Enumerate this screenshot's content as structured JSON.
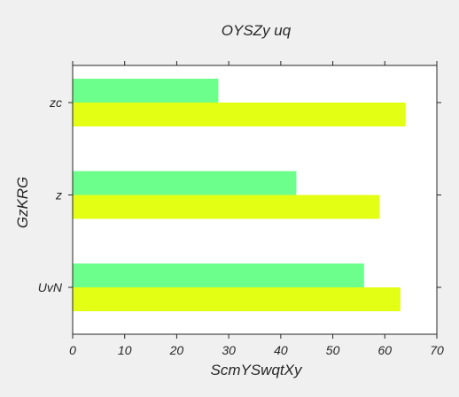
{
  "chart_data": {
    "type": "bar",
    "orientation": "horizontal",
    "title": "OYSZy   uq",
    "xlabel": "ScmYSwqtXy",
    "ylabel": "GzKRG",
    "categories": [
      "UvN",
      "z",
      "zc"
    ],
    "series": [
      {
        "color": "#6dff8b",
        "values": [
          56,
          43,
          28
        ]
      },
      {
        "color": "#e3ff14",
        "values": [
          63,
          59,
          64
        ]
      }
    ],
    "xlim": [
      0,
      70
    ],
    "x_ticks": [
      0,
      10,
      20,
      30,
      40,
      50,
      60,
      70
    ],
    "grid": false,
    "legend": "none"
  },
  "colors": {
    "background": "#f0f0f0",
    "plot_area": "#ffffff",
    "axis": "#262626"
  }
}
